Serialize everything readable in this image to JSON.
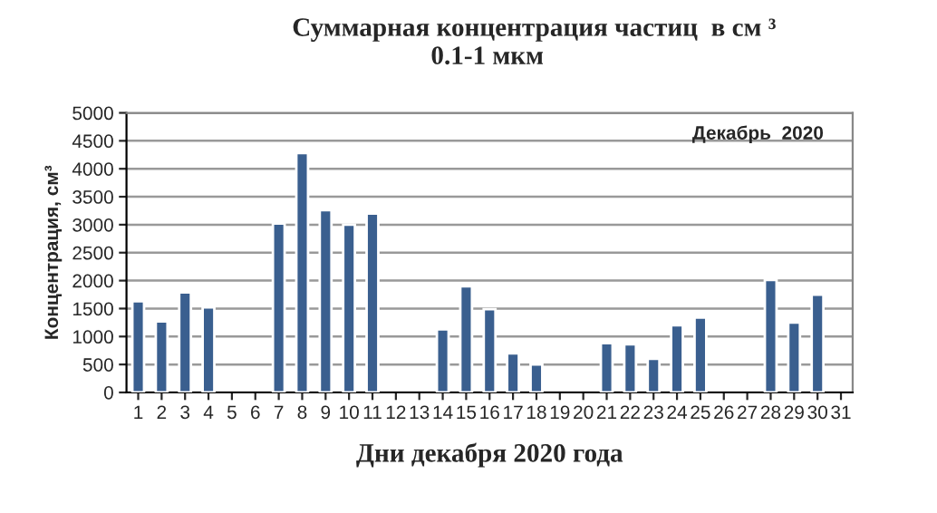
{
  "chart_data": {
    "type": "bar",
    "title": "Суммарная концентрация частиц  в см ³",
    "subtitle": "0.1-1 мкм",
    "xlabel": "Дни декабря 2020 года",
    "ylabel": "Концентрация, см³",
    "annotations": [
      "Декабрь  2020"
    ],
    "categories": [
      "1",
      "2",
      "3",
      "4",
      "5",
      "6",
      "7",
      "8",
      "9",
      "10",
      "11",
      "12",
      "13",
      "14",
      "15",
      "16",
      "17",
      "18",
      "19",
      "20",
      "21",
      "22",
      "23",
      "24",
      "25",
      "26",
      "27",
      "28",
      "29",
      "30",
      "31"
    ],
    "series": [
      {
        "color": "#3a5f8f",
        "values": [
          1630,
          1270,
          1790,
          1520,
          null,
          null,
          3020,
          4280,
          3260,
          3000,
          3200,
          null,
          null,
          1130,
          1900,
          1490,
          700,
          500,
          null,
          null,
          880,
          860,
          600,
          1200,
          1340,
          null,
          null,
          2010,
          1250,
          1750,
          null
        ]
      }
    ],
    "ylim": [
      0,
      5000
    ],
    "yticks": [
      0,
      500,
      1000,
      1500,
      2000,
      2500,
      3000,
      3500,
      4000,
      4500,
      5000
    ],
    "grid": "y",
    "legend": false
  }
}
